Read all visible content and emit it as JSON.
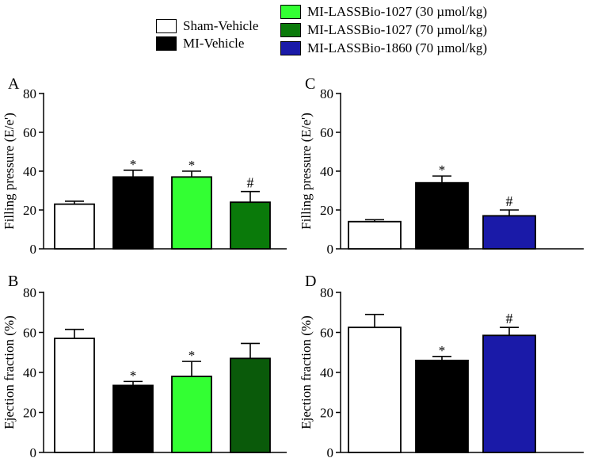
{
  "legend": {
    "items": [
      {
        "label": "Sham-Vehicle",
        "color": "#ffffff"
      },
      {
        "label": "MI-Vehicle",
        "color": "#000000"
      },
      {
        "label": "MI-LASSBio-1027 (30 µmol/kg)",
        "color": "#33ff33"
      },
      {
        "label": "MI-LASSBio-1027 (70 µmol/kg)",
        "color": "#0a7a0a"
      },
      {
        "label": "MI-LASSBio-1860 (70 µmol/kg)",
        "color": "#1a1aa8"
      }
    ]
  },
  "chart_data": [
    {
      "panel": "A",
      "type": "bar",
      "ylabel": "Filling pressure (E/e')",
      "ylim": [
        0,
        80
      ],
      "yticks": [
        0,
        20,
        40,
        60,
        80
      ],
      "categories": [
        "Sham-Vehicle",
        "MI-Vehicle",
        "MI-LASSBio-1027 (30 µmol/kg)",
        "MI-LASSBio-1027 (70 µmol/kg)"
      ],
      "values": [
        23,
        37,
        37,
        24
      ],
      "errors": [
        1.5,
        3.5,
        3,
        5.5
      ],
      "colors": [
        "#ffffff",
        "#000000",
        "#33ff33",
        "#0a7a0a"
      ],
      "annotations": [
        "",
        "*",
        "*",
        "#"
      ]
    },
    {
      "panel": "B",
      "type": "bar",
      "ylabel": "Ejection fraction (%)",
      "ylim": [
        0,
        80
      ],
      "yticks": [
        0,
        20,
        40,
        60,
        80
      ],
      "categories": [
        "Sham-Vehicle",
        "MI-Vehicle",
        "MI-LASSBio-1027 (30 µmol/kg)",
        "MI-LASSBio-1027 (70 µmol/kg)"
      ],
      "values": [
        57,
        33.5,
        38,
        47
      ],
      "errors": [
        4.5,
        2,
        7.5,
        7.5
      ],
      "colors": [
        "#ffffff",
        "#000000",
        "#33ff33",
        "#0a5a0a"
      ],
      "annotations": [
        "",
        "*",
        "*",
        ""
      ]
    },
    {
      "panel": "C",
      "type": "bar",
      "ylabel": "Filling pressure (E/e')",
      "ylim": [
        0,
        80
      ],
      "yticks": [
        0,
        20,
        40,
        60,
        80
      ],
      "categories": [
        "Sham-Vehicle",
        "MI-Vehicle",
        "MI-LASSBio-1860 (70 µmol/kg)"
      ],
      "values": [
        14,
        34,
        17
      ],
      "errors": [
        1,
        3.5,
        3
      ],
      "colors": [
        "#ffffff",
        "#000000",
        "#1a1aa8"
      ],
      "annotations": [
        "",
        "*",
        "#"
      ]
    },
    {
      "panel": "D",
      "type": "bar",
      "ylabel": "Ejection fraction (%)",
      "ylim": [
        0,
        80
      ],
      "yticks": [
        0,
        20,
        40,
        60,
        80
      ],
      "categories": [
        "Sham-Vehicle",
        "MI-Vehicle",
        "MI-LASSBio-1860 (70 µmol/kg)"
      ],
      "values": [
        62.5,
        46,
        58.5
      ],
      "errors": [
        6.5,
        2,
        4
      ],
      "colors": [
        "#ffffff",
        "#000000",
        "#1a1aa8"
      ],
      "annotations": [
        "",
        "*",
        "#"
      ]
    }
  ]
}
